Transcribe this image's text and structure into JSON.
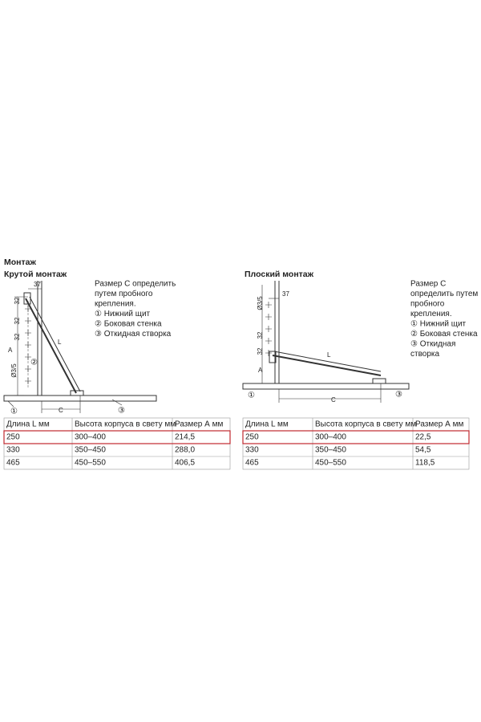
{
  "title": "Монтаж",
  "sections": [
    {
      "title": "Крутой монтаж",
      "diagram": {
        "labels": [
          "37",
          "32",
          "32",
          "32",
          "A",
          "Ø3/5",
          "L",
          "C",
          "①",
          "②",
          "③"
        ]
      },
      "notes": [
        "Размер С определить",
        "путем пробного",
        "крепления.",
        "① Нижний щит",
        "② Боковая стенка",
        "③ Откидная створка"
      ],
      "table": {
        "header": [
          "Длина L мм",
          "Высота корпуса в свету мм",
          "Размер А мм"
        ],
        "rows": [
          [
            "250",
            "300–400",
            "214,5"
          ],
          [
            "330",
            "350–450",
            "288,0"
          ],
          [
            "465",
            "450–550",
            "406,5"
          ]
        ]
      }
    },
    {
      "title": "Плоский монтаж",
      "diagram": {
        "labels": [
          "37",
          "Ø3/5",
          "32",
          "32",
          "A",
          "L",
          "C",
          "①",
          "③"
        ]
      },
      "notes": [
        "Размер С",
        "определить путем",
        "пробного",
        "крепления.",
        "① Нижний щит",
        "② Боковая стенка",
        "③ Откидная",
        "створка"
      ],
      "table": {
        "header": [
          "Длина L мм",
          "Высота корпуса в свету мм",
          "Размер А мм"
        ],
        "rows": [
          [
            "250",
            "300–400",
            "22,5"
          ],
          [
            "330",
            "350–450",
            "54,5"
          ],
          [
            "465",
            "450–550",
            "118,5"
          ]
        ]
      }
    }
  ]
}
